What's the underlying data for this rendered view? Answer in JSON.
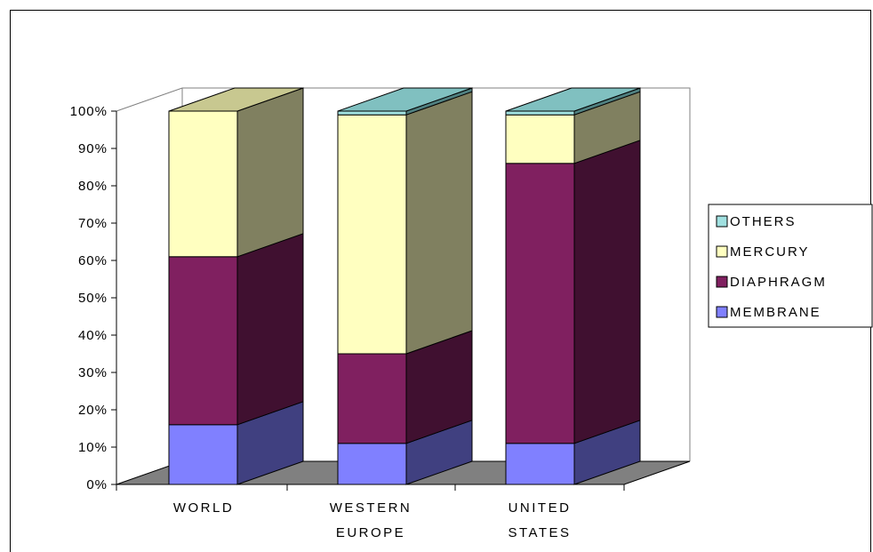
{
  "chart_data": {
    "type": "bar",
    "stacked": true,
    "percent_stacked": true,
    "three_d": true,
    "categories": [
      "WORLD",
      "WESTERN EUROPE",
      "UNITED STATES"
    ],
    "category_lines": [
      [
        "WORLD"
      ],
      [
        "WESTERN",
        "EUROPE"
      ],
      [
        "UNITED",
        "STATES"
      ]
    ],
    "series": [
      {
        "name": "MEMBRANE",
        "values": [
          16,
          11,
          11
        ],
        "color": "#8080ff",
        "shade": "#404080",
        "top": "#b3b3ff"
      },
      {
        "name": "DIAPHRAGM",
        "values": [
          45,
          24,
          75
        ],
        "color": "#802060",
        "shade": "#401030",
        "top": "#a04080"
      },
      {
        "name": "MERCURY",
        "values": [
          39,
          64,
          13
        ],
        "color": "#ffffc0",
        "shade": "#808060",
        "top": "#c8c890"
      },
      {
        "name": "OTHERS",
        "values": [
          0,
          1,
          1
        ],
        "color": "#a0e0e0",
        "shade": "#508080",
        "top": "#80c0c0"
      }
    ],
    "y_ticks": [
      "0%",
      "10%",
      "20%",
      "30%",
      "40%",
      "50%",
      "60%",
      "70%",
      "80%",
      "90%",
      "100%"
    ],
    "ylim": [
      0,
      100
    ],
    "legend_order": [
      "OTHERS",
      "MERCURY",
      "DIAPHRAGM",
      "MEMBRANE"
    ],
    "legend_position": "right",
    "floor_color": "#808080",
    "title": "",
    "xlabel": "",
    "ylabel": ""
  }
}
